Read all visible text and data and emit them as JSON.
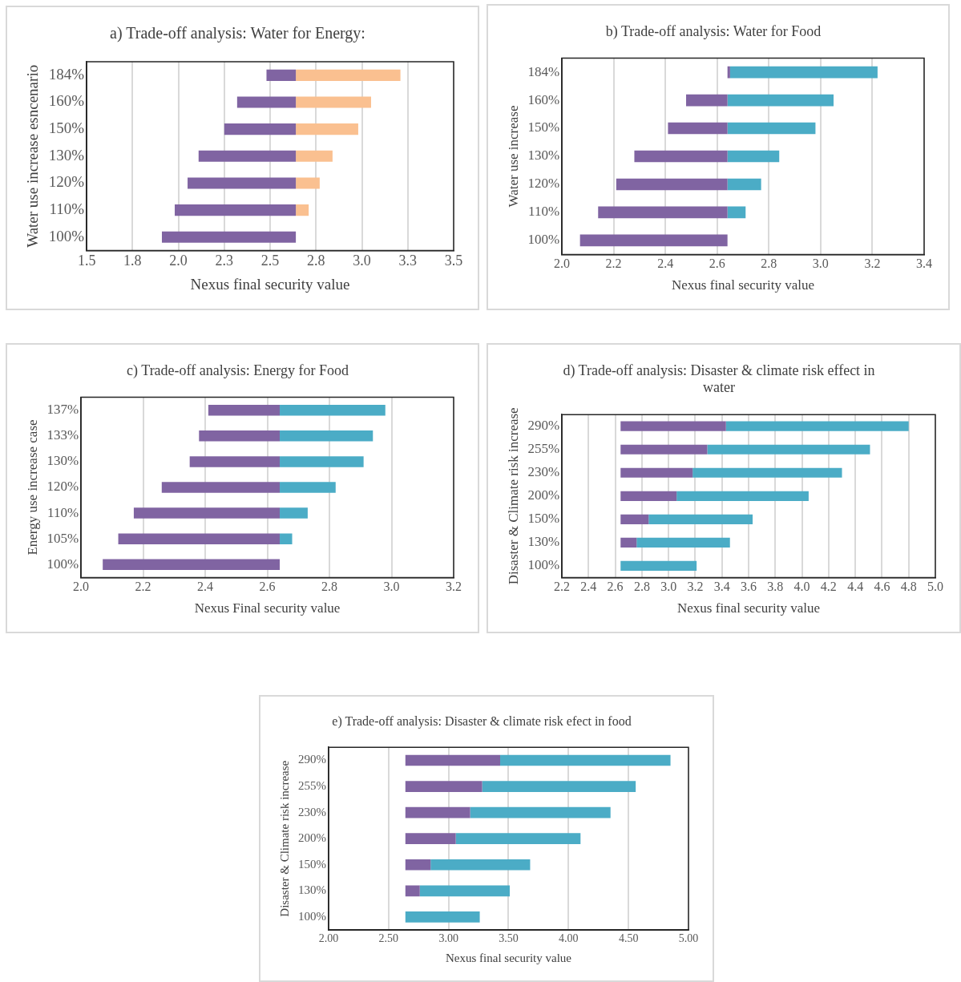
{
  "chart_data": [
    {
      "type": "bar",
      "orientation": "horizontal",
      "title": "a) Trade-off analysis: Water for Energy:",
      "xlabel": "Nexus final security value",
      "ylabel": "Water use increase esncenario",
      "categories": [
        "184%",
        "160%",
        "150%",
        "130%",
        "120%",
        "110%",
        "100%"
      ],
      "xlim": [
        1.5,
        3.5
      ],
      "xticks": [
        1.5,
        {
          "value": 1.75,
          "label": "1.8"
        },
        {
          "value": 2,
          "label": "2.0"
        },
        {
          "value": 2.25,
          "label": "2.3"
        },
        2.5,
        {
          "value": 2.75,
          "label": "2.8"
        },
        {
          "value": 3,
          "label": "3.0"
        },
        {
          "value": 3.25,
          "label": "3.3"
        },
        3.5
      ],
      "grid": "x",
      "series": [
        {
          "color": "#8064a2",
          "base": [
            2.48,
            2.32,
            2.25,
            2.11,
            2.05,
            1.98,
            1.91
          ],
          "values": [
            0.16,
            0.32,
            0.39,
            0.53,
            0.59,
            0.66,
            0.73
          ]
        },
        {
          "color": "#fac090",
          "base": [
            2.64,
            2.64,
            2.64,
            2.64,
            2.64,
            2.64,
            null
          ],
          "values": [
            0.57,
            0.41,
            0.34,
            0.2,
            0.13,
            0.07,
            null
          ]
        }
      ]
    },
    {
      "type": "bar",
      "orientation": "horizontal",
      "title": "b) Trade-off analysis: Water for Food",
      "xlabel": "Nexus final security value",
      "ylabel": "Water use increase",
      "categories": [
        "184%",
        "160%",
        "150%",
        "130%",
        "120%",
        "110%",
        "100%"
      ],
      "xlim": [
        2,
        3.4
      ],
      "xticks": [
        {
          "value": 2,
          "label": "2.0"
        },
        2.2,
        2.4,
        2.6,
        2.8,
        {
          "value": 3,
          "label": "3.0"
        },
        3.2,
        3.4
      ],
      "grid": "x",
      "series": [
        {
          "color": "#8064a2",
          "base": [
            2.64,
            2.48,
            2.41,
            2.28,
            2.21,
            2.14,
            2.07
          ],
          "values": [
            0.01,
            0.16,
            0.23,
            0.36,
            0.43,
            0.5,
            0.57
          ]
        },
        {
          "color": "#4bacc6",
          "base": [
            2.65,
            2.64,
            2.64,
            2.64,
            2.64,
            2.64,
            null
          ],
          "values": [
            0.57,
            0.41,
            0.34,
            0.2,
            0.13,
            0.07,
            null
          ]
        }
      ]
    },
    {
      "type": "bar",
      "orientation": "horizontal",
      "title": "c) Trade-off analysis: Energy for Food",
      "xlabel": "Nexus Final security value",
      "ylabel": "Energy use increase case",
      "categories": [
        "137%",
        "133%",
        "130%",
        "120%",
        "110%",
        "105%",
        "100%"
      ],
      "xlim": [
        2,
        3.2
      ],
      "xticks": [
        {
          "value": 2,
          "label": "2.0"
        },
        2.2,
        2.4,
        2.6,
        2.8,
        {
          "value": 3,
          "label": "3.0"
        },
        3.2
      ],
      "grid": "x",
      "series": [
        {
          "color": "#8064a2",
          "base": [
            2.41,
            2.38,
            2.35,
            2.26,
            2.17,
            2.12,
            2.07
          ],
          "values": [
            0.23,
            0.26,
            0.29,
            0.38,
            0.47,
            0.52,
            0.57
          ]
        },
        {
          "color": "#4bacc6",
          "base": [
            2.64,
            2.64,
            2.64,
            2.64,
            2.64,
            2.64,
            null
          ],
          "values": [
            0.34,
            0.3,
            0.27,
            0.18,
            0.09,
            0.04,
            null
          ]
        }
      ]
    },
    {
      "type": "bar",
      "orientation": "horizontal",
      "title": "d) Trade-off analysis: Disaster & climate risk effect in water",
      "xlabel": "Nexus final security value",
      "ylabel": "Disaster & Climate risk increase",
      "categories": [
        "290%",
        "255%",
        "230%",
        "200%",
        "150%",
        "130%",
        "100%"
      ],
      "xlim": [
        2.2,
        5
      ],
      "xticks": [
        2.2,
        2.4,
        2.6,
        2.8,
        {
          "value": 3,
          "label": "3.0"
        },
        3.2,
        3.4,
        3.6,
        3.8,
        {
          "value": 4,
          "label": "4.0"
        },
        4.2,
        4.4,
        4.6,
        4.8,
        {
          "value": 5,
          "label": "5.0"
        }
      ],
      "grid": "x",
      "series": [
        {
          "color": "#8064a2",
          "base": [
            2.64,
            2.64,
            2.64,
            2.64,
            2.64,
            2.64,
            null
          ],
          "values": [
            0.79,
            0.65,
            0.54,
            0.42,
            0.21,
            0.12,
            null
          ]
        },
        {
          "color": "#4bacc6",
          "base": [
            3.43,
            3.29,
            3.18,
            3.06,
            2.85,
            2.76,
            2.64
          ],
          "values": [
            1.37,
            1.22,
            1.12,
            0.99,
            0.78,
            0.7,
            0.57
          ]
        }
      ]
    },
    {
      "type": "bar",
      "orientation": "horizontal",
      "title": "e) Trade-off analysis: Disaster & climate risk efect in food",
      "xlabel": "Nexus final security value",
      "ylabel": "Disaster & Climate risk increase",
      "categories": [
        "290%",
        "255%",
        "230%",
        "200%",
        "150%",
        "130%",
        "100%"
      ],
      "xlim": [
        2,
        5
      ],
      "xticks": [
        {
          "value": 2,
          "label": "2.00"
        },
        {
          "value": 2.5,
          "label": "2.50"
        },
        {
          "value": 3,
          "label": "3.00"
        },
        {
          "value": 3.5,
          "label": "3.50"
        },
        {
          "value": 4,
          "label": "4.00"
        },
        {
          "value": 4.5,
          "label": "4.50"
        },
        {
          "value": 5,
          "label": "5.00"
        }
      ],
      "grid": "x",
      "series": [
        {
          "color": "#8064a2",
          "base": [
            2.64,
            2.64,
            2.64,
            2.64,
            2.64,
            2.64,
            null
          ],
          "values": [
            0.79,
            0.64,
            0.54,
            0.42,
            0.21,
            0.12,
            null
          ]
        },
        {
          "color": "#4bacc6",
          "base": [
            3.43,
            3.28,
            3.18,
            3.06,
            2.85,
            2.76,
            2.64
          ],
          "values": [
            1.42,
            1.28,
            1.17,
            1.04,
            0.83,
            0.75,
            0.62
          ]
        }
      ]
    }
  ]
}
